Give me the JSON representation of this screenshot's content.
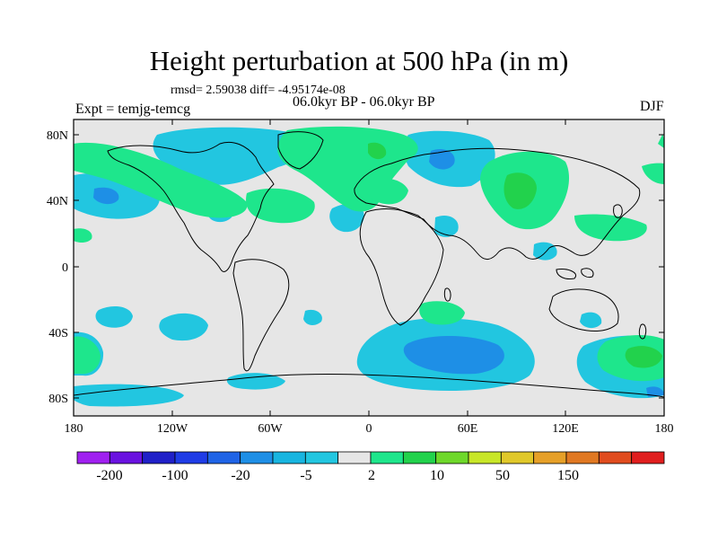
{
  "title": "Height perturbation at 500 hPa (in m)",
  "stats": "rmsd= 2.59038 diff= -4.95174e-08",
  "experiment": "Expt = temjg-temcg",
  "period": "06.0kyr BP - 06.0kyr BP",
  "season": "DJF",
  "lat_labels": [
    "80N",
    "40N",
    "0",
    "40S",
    "80S"
  ],
  "lon_labels": [
    "180",
    "120W",
    "60W",
    "0",
    "60E",
    "120E",
    "180"
  ],
  "colorbar": {
    "colors": [
      "#a020f0",
      "#6a12e0",
      "#2020c8",
      "#1f3ce6",
      "#1f64e6",
      "#1e8fe6",
      "#18b5e0",
      "#22c6e0",
      "#e6e6e6",
      "#1ee68c",
      "#22d24c",
      "#6ed82a",
      "#c8e628",
      "#e0c82a",
      "#e6a028",
      "#e07822",
      "#e04c1e",
      "#e01e1e"
    ],
    "labels": [
      "-200",
      "-100",
      "-20",
      "-5",
      "2",
      "10",
      "50",
      "150"
    ]
  },
  "palette": {
    "background": "#e6e6e6",
    "land_outline": "#000000"
  }
}
